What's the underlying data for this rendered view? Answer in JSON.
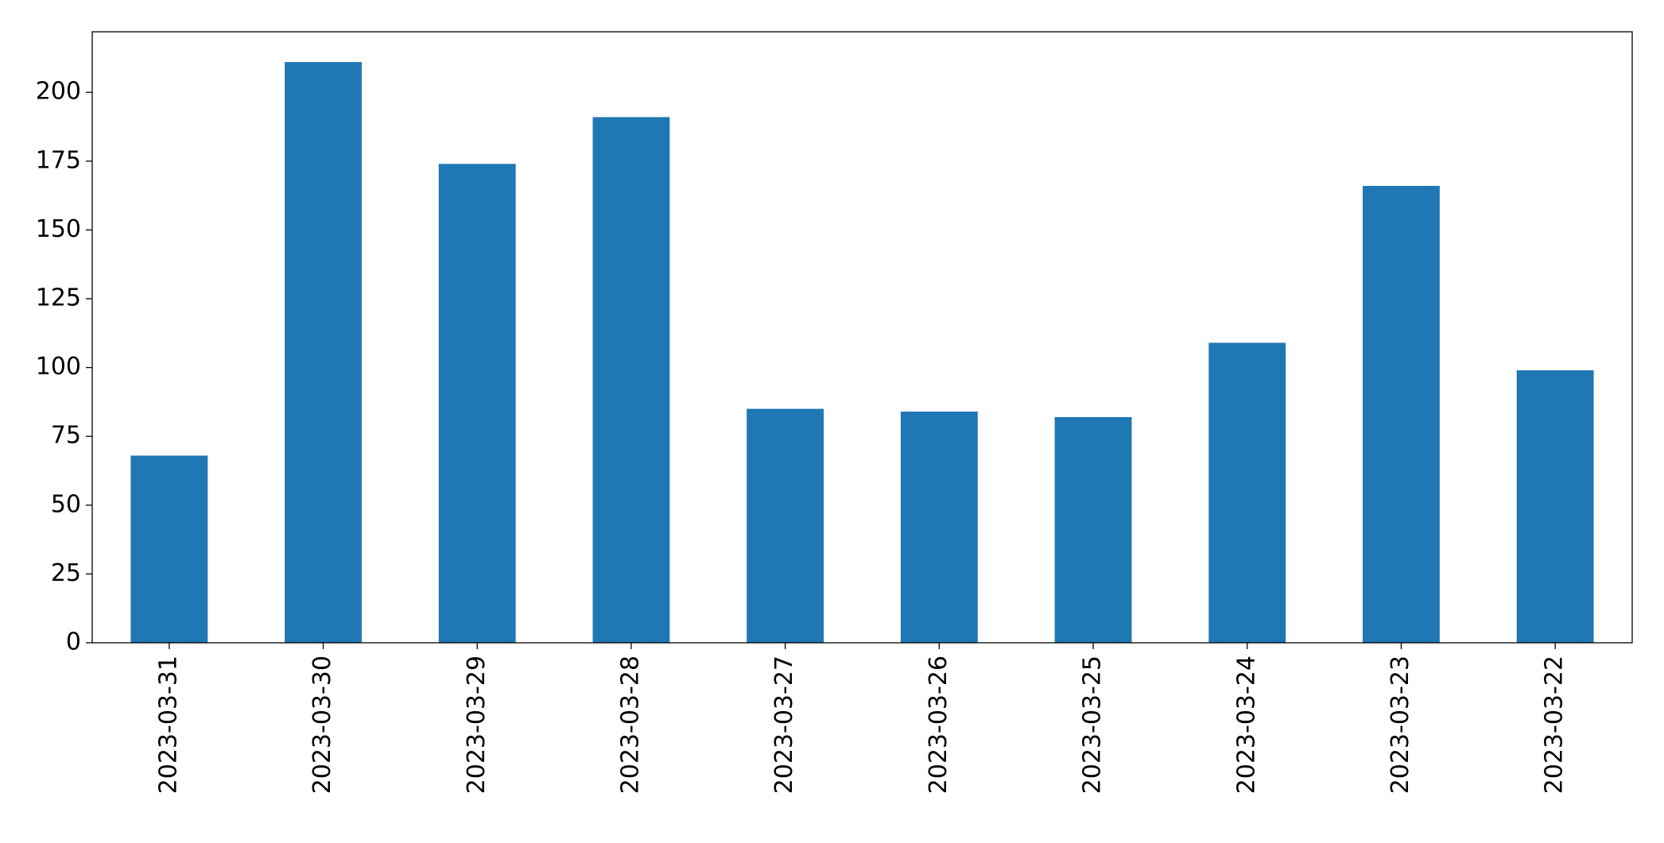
{
  "chart_data": {
    "type": "bar",
    "categories": [
      "2023-03-31",
      "2023-03-30",
      "2023-03-29",
      "2023-03-28",
      "2023-03-27",
      "2023-03-26",
      "2023-03-25",
      "2023-03-24",
      "2023-03-23",
      "2023-03-22"
    ],
    "values": [
      68,
      211,
      174,
      191,
      85,
      84,
      82,
      109,
      166,
      99
    ],
    "color": "#1f77b4",
    "ylim": [
      0,
      222
    ],
    "yticks": [
      0,
      25,
      50,
      75,
      100,
      125,
      150,
      175,
      200
    ],
    "grid": false
  }
}
